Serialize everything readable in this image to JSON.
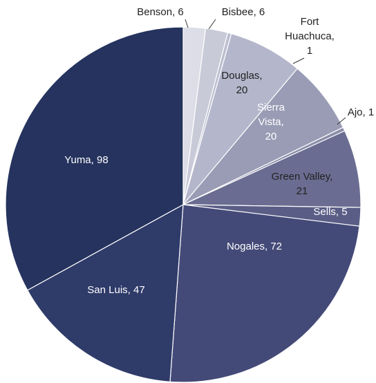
{
  "chart_data": {
    "type": "pie",
    "values": [
      6,
      6,
      1,
      20,
      20,
      1,
      21,
      5,
      72,
      47,
      98
    ],
    "value_labels": [
      "Benson, 6",
      "Bisbee, 6",
      "Fort\nHuachuca,\n1",
      "Douglas,\n20",
      "Sierra\nVista,\n20",
      "Ajo, 1",
      "Green Valley,\n21",
      "Sells, 5",
      "Nogales, 72",
      "San Luis, 47",
      "Yuma, 98"
    ],
    "colors": [
      "#dcdde6",
      "#c9cad8",
      "#bcbed0",
      "#b4b6cb",
      "#9a9cb5",
      "#8a8ca8",
      "#6a6d91",
      "#5a5e86",
      "#444a78",
      "#2f3b69",
      "#25335e"
    ]
  }
}
